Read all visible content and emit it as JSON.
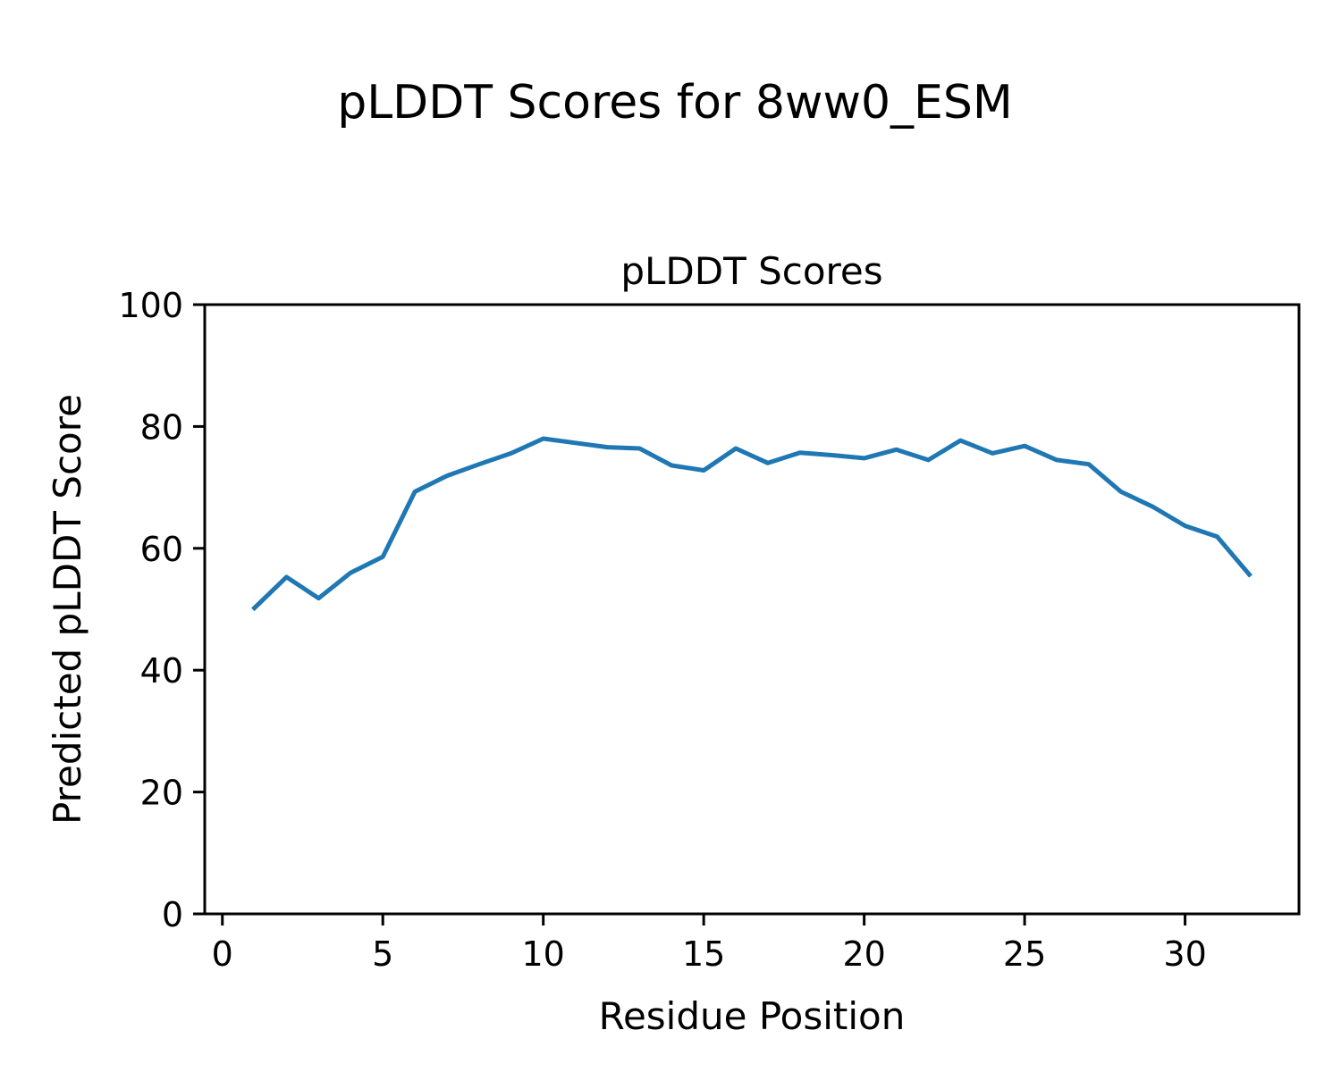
{
  "figure": {
    "suptitle": "pLDDT Scores for 8ww0_ESM",
    "background_color": "#ffffff",
    "text_color": "#000000"
  },
  "chart_data": {
    "type": "line",
    "suptitle": "pLDDT Scores for 8ww0_ESM",
    "title": "pLDDT Scores",
    "xlabel": "Residue Position",
    "ylabel": "Predicted pLDDT Score",
    "series": [
      {
        "name": "pLDDT",
        "color": "#1f77b4",
        "x": [
          1,
          2,
          3,
          4,
          5,
          6,
          7,
          8,
          9,
          10,
          11,
          12,
          13,
          14,
          15,
          16,
          17,
          18,
          19,
          20,
          21,
          22,
          23,
          24,
          25,
          26,
          27,
          28,
          29,
          30,
          31,
          32
        ],
        "y": [
          50.2,
          55.3,
          51.8,
          56.0,
          58.6,
          69.3,
          71.9,
          73.8,
          75.6,
          78.0,
          77.3,
          76.6,
          76.4,
          73.6,
          72.8,
          76.4,
          74.0,
          75.7,
          75.3,
          74.8,
          76.2,
          74.5,
          77.7,
          75.6,
          76.8,
          74.5,
          73.8,
          69.3,
          66.8,
          63.7,
          61.9,
          55.7
        ]
      }
    ],
    "xlim": [
      -0.55,
      33.55
    ],
    "ylim": [
      0,
      100
    ],
    "xticks": [
      0,
      5,
      10,
      15,
      20,
      25,
      30
    ],
    "yticks": [
      0,
      20,
      40,
      60,
      80,
      100
    ],
    "grid": false,
    "legend": null,
    "line_width": 5
  }
}
